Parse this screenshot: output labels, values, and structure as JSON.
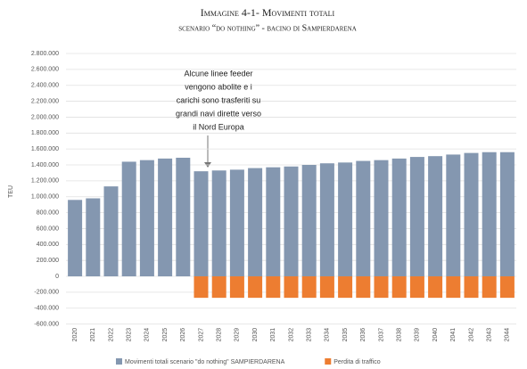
{
  "chart_data": {
    "type": "bar",
    "title": "Immagine 4-1- Movimenti totali",
    "subtitle": "scenario “do nothing” - bacino di Sampierdarena",
    "y_label": "TEU",
    "annotation": [
      "Alcune linee feeder",
      "vengono abolite e i",
      "carichi sono trasferiti su",
      "grandi navi dirette verso",
      "il Nord Europa"
    ],
    "categories": [
      "2020",
      "2021",
      "2022",
      "2023",
      "2024",
      "2025",
      "2026",
      "2027",
      "2028",
      "2029",
      "2030",
      "2031",
      "2032",
      "2033",
      "2034",
      "2035",
      "2036",
      "2037",
      "2038",
      "2039",
      "2040",
      "2041",
      "2042",
      "2043",
      "2044"
    ],
    "series": [
      {
        "name": "Movimenti totali scenario \"do nothing\" SAMPIERDARENA",
        "color": "#8497b0",
        "values": [
          960000,
          980000,
          1130000,
          1440000,
          1460000,
          1480000,
          1490000,
          1320000,
          1330000,
          1340000,
          1360000,
          1370000,
          1380000,
          1400000,
          1420000,
          1430000,
          1450000,
          1460000,
          1480000,
          1500000,
          1510000,
          1530000,
          1550000,
          1560000,
          1560000
        ]
      },
      {
        "name": "Perdita di traffico",
        "color": "#ed7d31",
        "values": [
          null,
          null,
          null,
          null,
          null,
          null,
          null,
          -270000,
          -270000,
          -270000,
          -270000,
          -270000,
          -270000,
          -270000,
          -270000,
          -270000,
          -270000,
          -270000,
          -270000,
          -270000,
          -270000,
          -270000,
          -270000,
          -270000,
          -270000
        ]
      }
    ],
    "ylim": [
      -600000,
      2800000
    ],
    "yticks": [
      {
        "value": -600000,
        "label": "-600.000"
      },
      {
        "value": -400000,
        "label": "-400.000"
      },
      {
        "value": -200000,
        "label": "-200.000"
      },
      0,
      {
        "value": 200000,
        "label": "200.000"
      },
      {
        "value": 400000,
        "label": "400.000"
      },
      {
        "value": 600000,
        "label": "600.000"
      },
      {
        "value": 800000,
        "label": "800.000"
      },
      {
        "value": 1000000,
        "label": "1.000.000"
      },
      {
        "value": 1200000,
        "label": "1.200.000"
      },
      {
        "value": 1400000,
        "label": "1.400.000"
      },
      {
        "value": 1600000,
        "label": "1.600.000"
      },
      {
        "value": 1800000,
        "label": "1.800.000"
      },
      {
        "value": 2000000,
        "label": "2.000.000"
      },
      {
        "value": 2200000,
        "label": "2.200.000"
      },
      {
        "value": 2400000,
        "label": "2.400.000"
      },
      {
        "value": 2600000,
        "label": "2.600.000"
      },
      {
        "value": 2800000,
        "label": "2.800.000"
      }
    ],
    "grid": true,
    "legend": "bottom"
  }
}
